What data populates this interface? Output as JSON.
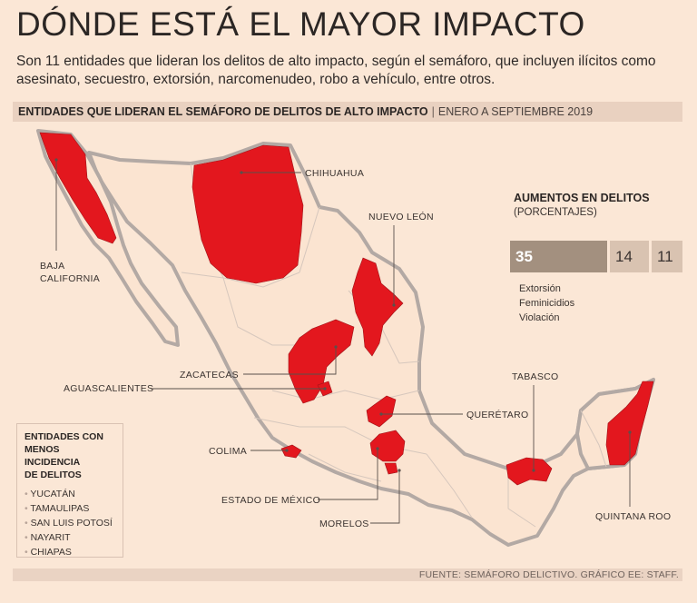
{
  "title": "DÓNDE ESTÁ EL MAYOR IMPACTO",
  "subtitle": "Son 11 entidades que lideran los delitos de alto impacto, según el semáforo, que incluyen ilícitos como asesinato, secuestro, extorsión, narcomenudeo, robo a vehículo, entre otros.",
  "section": {
    "heading": "ENTIDADES QUE LIDERAN EL SEMÁFORO DE DELITOS DE ALTO IMPACTO",
    "separator": "|",
    "period": "ENERO A SEPTIEMBRE 2019"
  },
  "colors": {
    "background": "#fbe7d6",
    "highlight": "#e3171e",
    "land": "#fbe4d1",
    "coast": "#b3a9a4",
    "bar_dark": "#a3907f",
    "bar_light": "#d9c3b1"
  },
  "states": {
    "baja_california": "BAJA\nCALIFORNIA",
    "baja_california_l1": "BAJA",
    "baja_california_l2": "CALIFORNIA",
    "chihuahua": "CHIHUAHUA",
    "nuevo_leon": "NUEVO LEÓN",
    "zacatecas": "ZACATECAS",
    "aguascalientes": "AGUASCALIENTES",
    "queretaro": "QUERÉTARO",
    "colima": "COLIMA",
    "estado_de_mexico": "ESTADO DE MÉXICO",
    "morelos": "MORELOS",
    "tabasco": "TABASCO",
    "quintana_roo": "QUINTANA ROO"
  },
  "increases": {
    "title": "AUMENTOS EN DELITOS",
    "subtitle": "(PORCENTAJES)",
    "items": [
      {
        "label": "Extorsión",
        "value": "35",
        "value_num": 35
      },
      {
        "label": "Feminicidios",
        "value": "14",
        "value_num": 14
      },
      {
        "label": "Violación",
        "value": "11",
        "value_num": 11
      }
    ]
  },
  "low_incidence": {
    "title_l1": "ENTIDADES CON",
    "title_l2": "MENOS INCIDENCIA",
    "title_l3": "DE DELITOS",
    "items": [
      "YUCATÁN",
      "TAMAULIPAS",
      "SAN LUIS POTOSÍ",
      "NAYARIT",
      "CHIAPAS"
    ]
  },
  "source": "FUENTE: SEMÁFORO DELICTIVO. GRÁFICO EE: STAFF."
}
